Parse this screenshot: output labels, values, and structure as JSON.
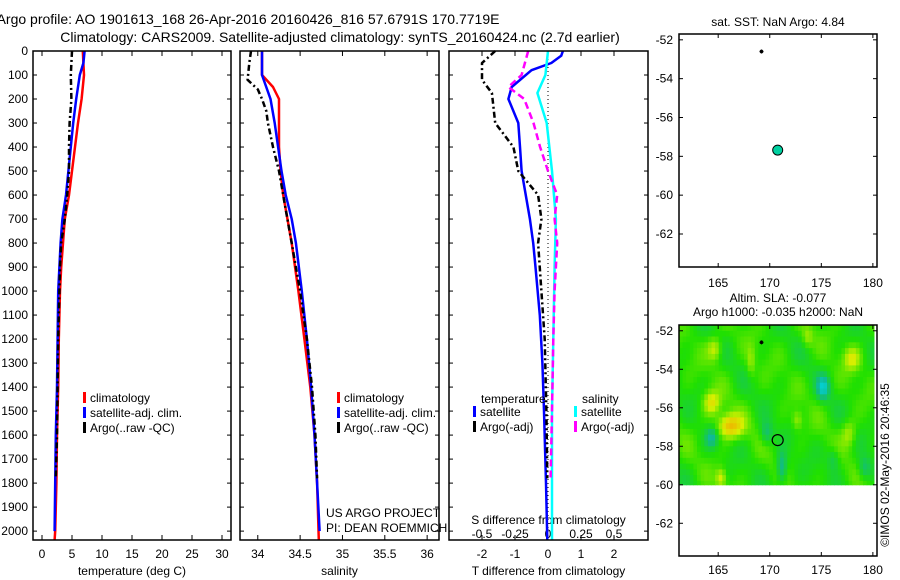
{
  "title_lines": [
    "Argo profile: AO 1901613_168 26-Apr-2016 20160426_816 57.6791S 170.7719E",
    "Climatology: CARS2009. Satellite-adjusted climatology: synTS_20160424.nc (2.7d earlier)"
  ],
  "credit": "©IMOS 02-May-2016 20:46:35",
  "chart_data": [
    {
      "type": "line",
      "xlabel": "temperature (deg C)",
      "ylabel": "",
      "xlim": [
        -1.5,
        31.5
      ],
      "ylim": [
        0,
        2037
      ],
      "xticks": [
        0,
        5,
        10,
        15,
        20,
        25,
        30
      ],
      "xtick_labels": [
        "0",
        "5",
        "10",
        "15",
        "20",
        "25",
        "30"
      ],
      "yticks": [
        0,
        100,
        200,
        300,
        400,
        500,
        600,
        700,
        800,
        900,
        1000,
        1100,
        1200,
        1300,
        1400,
        1500,
        1600,
        1700,
        1800,
        1900,
        2000
      ],
      "ytick_labels": [
        "0",
        "100",
        "200",
        "300",
        "400",
        "500",
        "600",
        "700",
        "800",
        "900",
        "1000",
        "1100",
        "1200",
        "1300",
        "1400",
        "1500",
        "1600",
        "1700",
        "1800",
        "1900",
        "2000"
      ],
      "legend": [
        "climatology",
        "satellite-adj. clim.",
        "Argo(..raw -QC)"
      ],
      "series": [
        {
          "name": "climatology",
          "color": "#ff0000",
          "dash": "",
          "depth": [
            0,
            100,
            200,
            300,
            400,
            500,
            600,
            700,
            800,
            900,
            1000,
            1200,
            1400,
            1600,
            1800,
            2000,
            2037
          ],
          "values": [
            6.8,
            7.0,
            6.6,
            6.0,
            5.5,
            5.0,
            4.5,
            3.8,
            3.5,
            3.2,
            3.0,
            2.8,
            2.7,
            2.5,
            2.4,
            2.2,
            2.1
          ]
        },
        {
          "name": "satellite-adj. clim.",
          "color": "#0000ff",
          "dash": "",
          "depth": [
            0,
            50,
            100,
            200,
            300,
            400,
            500,
            600,
            700,
            800,
            900,
            1000,
            1200,
            1400,
            1600,
            1800,
            2000
          ],
          "values": [
            7.1,
            6.9,
            6.3,
            5.7,
            5.2,
            4.8,
            4.4,
            4.0,
            3.4,
            3.1,
            2.9,
            2.7,
            2.6,
            2.5,
            2.3,
            2.2,
            2.1
          ]
        },
        {
          "name": "Argo(..raw -QC)",
          "color": "#000000",
          "dash": "6,3,2,3",
          "depth": [
            0,
            100,
            200,
            300,
            400,
            500,
            600,
            700,
            800,
            900,
            1000,
            1200,
            1400,
            1600,
            1780
          ],
          "values": [
            5.0,
            4.8,
            4.9,
            4.6,
            4.5,
            4.5,
            4.2,
            3.8,
            3.2,
            3.0,
            2.9,
            2.7,
            2.6,
            2.5,
            2.3
          ]
        }
      ]
    },
    {
      "type": "line",
      "xlabel": "salinity",
      "xlim": [
        33.79,
        36.14
      ],
      "ylim": [
        0,
        2037
      ],
      "xticks": [
        34,
        34.5,
        35,
        35.5,
        36
      ],
      "xtick_labels": [
        "34",
        "34.5",
        "35",
        "35.5",
        "36"
      ],
      "yticks": [
        0,
        100,
        200,
        300,
        400,
        500,
        600,
        700,
        800,
        900,
        1000,
        1100,
        1200,
        1300,
        1400,
        1500,
        1600,
        1700,
        1800,
        1900,
        2000
      ],
      "legend": [
        "climatology",
        "satellite-adj. clim.",
        "Argo(..raw -QC)"
      ],
      "annotation": [
        "US ARGO PROJECT",
        "PI: DEAN ROEMMICH"
      ],
      "series": [
        {
          "name": "climatology",
          "color": "#ff0000",
          "dash": "",
          "depth": [
            0,
            100,
            150,
            200,
            300,
            400,
            500,
            600,
            800,
            1000,
            1200,
            1400,
            1600,
            1800,
            2037
          ],
          "values": [
            34.05,
            34.05,
            34.18,
            34.25,
            34.25,
            34.25,
            34.27,
            34.3,
            34.4,
            34.48,
            34.55,
            34.62,
            34.67,
            34.7,
            34.72
          ]
        },
        {
          "name": "satellite-adj. clim.",
          "color": "#0000ff",
          "dash": "",
          "depth": [
            0,
            100,
            200,
            300,
            400,
            500,
            600,
            700,
            800,
            1000,
            1200,
            1400,
            1600,
            1800,
            2000
          ],
          "values": [
            34.05,
            34.05,
            34.15,
            34.2,
            34.24,
            34.28,
            34.33,
            34.4,
            34.45,
            34.52,
            34.58,
            34.63,
            34.67,
            34.7,
            34.73
          ]
        },
        {
          "name": "Argo(..raw -QC)",
          "color": "#000000",
          "dash": "6,3,2,3",
          "depth": [
            0,
            50,
            120,
            160,
            200,
            250,
            300,
            400,
            500,
            600,
            700,
            800,
            1000,
            1200,
            1400,
            1600,
            1780
          ],
          "values": [
            33.92,
            33.9,
            33.88,
            34.0,
            34.05,
            34.1,
            34.12,
            34.18,
            34.25,
            34.3,
            34.35,
            34.4,
            34.5,
            34.58,
            34.64,
            34.68,
            34.7
          ]
        }
      ]
    },
    {
      "type": "line",
      "xlabel": "T difference from climatology",
      "x2label": "S difference from climatology",
      "xlim": [
        -3,
        3.03
      ],
      "x2lim": [
        -0.75,
        0.7575
      ],
      "ylim": [
        0,
        2037
      ],
      "xticks": [
        -2,
        -1,
        0,
        1,
        2
      ],
      "xtick_labels": [
        "-2",
        "-1",
        "0",
        "1",
        "2"
      ],
      "x2ticks": [
        -0.5,
        -0.25,
        0,
        0.25,
        0.5
      ],
      "x2tick_labels": [
        "-0.5",
        "-0.25",
        "0",
        "0.25",
        "0.5"
      ],
      "yticks": [
        0,
        100,
        200,
        300,
        400,
        500,
        600,
        700,
        800,
        900,
        1000,
        1100,
        1200,
        1300,
        1400,
        1500,
        1600,
        1700,
        1800,
        1900,
        2000
      ],
      "legend_headers": [
        "temperature",
        "salinity"
      ],
      "legend": [
        "satellite",
        "Argo(-adj)",
        "satellite",
        "Argo(-adj)"
      ],
      "series": [
        {
          "name": "T satellite",
          "axis": "T",
          "color": "#0000ff",
          "dash": "",
          "depth": [
            0,
            20,
            50,
            80,
            150,
            200,
            300,
            400,
            500,
            700,
            800,
            900,
            1100,
            1300,
            1500,
            1800,
            2037
          ],
          "values": [
            0.45,
            0.4,
            0.1,
            -0.5,
            -1.1,
            -1.2,
            -0.9,
            -0.85,
            -0.8,
            -0.55,
            -0.45,
            -0.38,
            -0.25,
            -0.17,
            -0.12,
            -0.06,
            -0.02
          ]
        },
        {
          "name": "T Argo(-adj)",
          "axis": "T",
          "color": "#000000",
          "dash": "6,3,2,3",
          "depth": [
            0,
            50,
            120,
            175,
            300,
            400,
            500,
            600,
            700,
            800,
            1000,
            1200,
            1500,
            1780
          ],
          "values": [
            -1.6,
            -2.0,
            -2.0,
            -1.7,
            -1.6,
            -1.05,
            -0.9,
            -0.3,
            -0.2,
            -0.3,
            -0.2,
            -0.1,
            -0.05,
            -0.02
          ]
        },
        {
          "name": "S satellite",
          "axis": "S",
          "color": "#00ffff",
          "dash": "",
          "depth": [
            0,
            100,
            175,
            300,
            500,
            700,
            900,
            1200,
            1500,
            2037
          ],
          "values": [
            0.0,
            -0.02,
            -0.08,
            -0.01,
            0.03,
            0.06,
            0.05,
            0.04,
            0.03,
            0.03
          ]
        },
        {
          "name": "S Argo(-adj)",
          "axis": "S",
          "color": "#ff00ff",
          "dash": "7,4",
          "depth": [
            0,
            100,
            150,
            200,
            300,
            400,
            500,
            600,
            700,
            800,
            1000,
            1200,
            1500,
            1780
          ],
          "values": [
            -0.15,
            -0.2,
            -0.3,
            -0.18,
            -0.11,
            -0.06,
            0.0,
            0.07,
            0.05,
            0.07,
            0.05,
            0.04,
            0.03,
            0.02
          ]
        }
      ]
    },
    {
      "type": "scatter",
      "title": "sat. SST: NaN Argo: 4.84",
      "xlim": [
        161.2,
        180.4
      ],
      "ylim": [
        -63.7,
        -51.7
      ],
      "xticks": [
        165,
        170,
        175,
        180
      ],
      "xtick_labels": [
        "165",
        "170",
        "175",
        "180"
      ],
      "yticks": [
        -52,
        -54,
        -56,
        -58,
        -60,
        -62
      ],
      "ytick_labels": [
        "-52",
        "-54",
        "-56",
        "-58",
        "-60",
        "-62"
      ],
      "points": [
        {
          "name": "previous-position",
          "lon": 169.2,
          "lat": -52.6,
          "marker": "star",
          "color": "#000000"
        },
        {
          "name": "profile-position",
          "lon": 170.77,
          "lat": -57.68,
          "marker": "circle",
          "color": "#00d0a0"
        }
      ]
    },
    {
      "type": "heatmap",
      "title": [
        "Altim. SLA: -0.077",
        "Argo h1000: -0.035 h2000: NaN"
      ],
      "xlim": [
        161.2,
        180.4
      ],
      "ylim": [
        -63.7,
        -51.7
      ],
      "data_lat_min": -60,
      "xticks": [
        165,
        170,
        175,
        180
      ],
      "xtick_labels": [
        "165",
        "170",
        "175",
        "180"
      ],
      "yticks": [
        -52,
        -54,
        -56,
        -58,
        -60,
        -62
      ],
      "ytick_labels": [
        "-52",
        "-54",
        "-56",
        "-58",
        "-60",
        "-62"
      ],
      "colormap": [
        "#00d8e8",
        "#10b890",
        "#20e000",
        "#d8f000",
        "#f0b000"
      ],
      "points": [
        {
          "name": "previous-position",
          "lon": 169.2,
          "lat": -52.6,
          "marker": "star",
          "color": "#000000"
        },
        {
          "name": "profile-position",
          "lon": 170.77,
          "lat": -57.68,
          "marker": "open-circle",
          "color": "#000000"
        }
      ]
    }
  ]
}
